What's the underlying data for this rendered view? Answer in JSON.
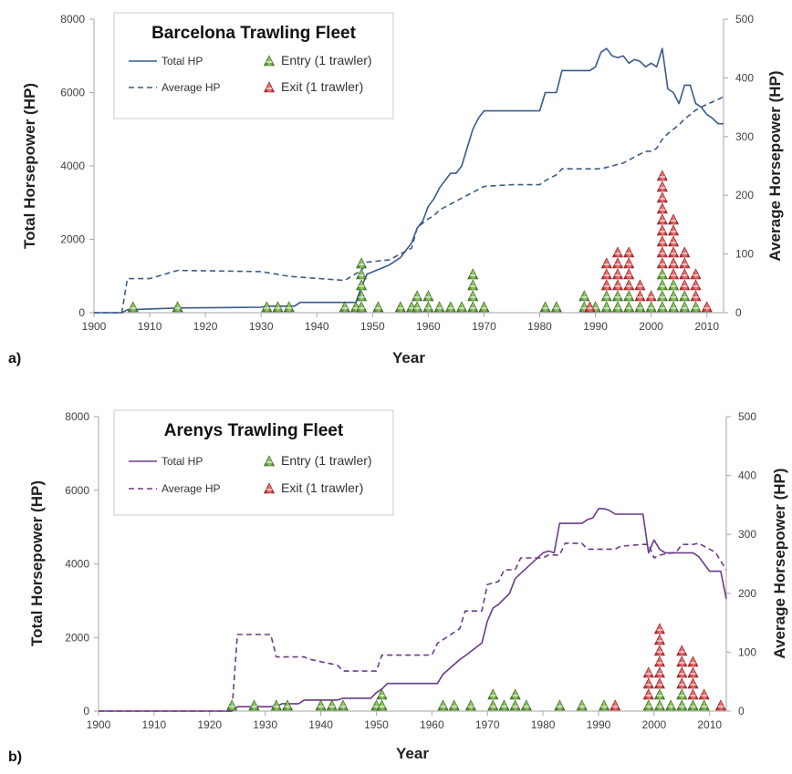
{
  "chart_data": [
    {
      "panel_label": "a)",
      "title": "Barcelona Trawling Fleet",
      "type": "line",
      "xlabel": "Year",
      "ylabel_left": "Total Horsepower (HP)",
      "ylabel_right": "Average Horsepower (HP)",
      "xlim": [
        1900,
        2013
      ],
      "ylim_left": [
        0,
        8000
      ],
      "ylim_right": [
        0,
        500
      ],
      "x_ticks": [
        "1900",
        "1910",
        "1920",
        "1930",
        "1940",
        "1950",
        "1960",
        "1970",
        "1980",
        "1990",
        "2000",
        "2010"
      ],
      "y_ticks_left": [
        "0",
        "2000",
        "4000",
        "6000",
        "8000"
      ],
      "y_ticks_right": [
        "0",
        "100",
        "200",
        "300",
        "400",
        "500"
      ],
      "color": "#3a5a8c",
      "legend": {
        "total": "Total HP",
        "average": "Average HP",
        "entry": "Entry (1 trawler)",
        "exit": "Exit (1 trawler)"
      },
      "series": [
        {
          "name": "Total HP",
          "axis": "left",
          "style": "solid",
          "x": [
            1900,
            1905,
            1906,
            1915,
            1930,
            1931,
            1936,
            1937,
            1947,
            1948,
            1949,
            1953,
            1955,
            1957,
            1958,
            1959,
            1960,
            1961,
            1962,
            1963,
            1964,
            1965,
            1966,
            1967,
            1968,
            1969,
            1970,
            1975,
            1980,
            1981,
            1983,
            1984,
            1988,
            1989,
            1990,
            1991,
            1992,
            1993,
            1994,
            1995,
            1996,
            1997,
            1998,
            1999,
            2000,
            2001,
            2002,
            2003,
            2004,
            2005,
            2006,
            2007,
            2008,
            2009,
            2010,
            2011,
            2012,
            2013
          ],
          "values": [
            0,
            0,
            80,
            130,
            150,
            180,
            180,
            280,
            280,
            700,
            1050,
            1300,
            1500,
            1900,
            2300,
            2500,
            2900,
            3100,
            3400,
            3600,
            3800,
            3800,
            4000,
            4500,
            5000,
            5300,
            5500,
            5500,
            5500,
            6000,
            6000,
            6600,
            6600,
            6600,
            6700,
            7100,
            7200,
            7000,
            6950,
            7000,
            6800,
            6900,
            6850,
            6700,
            6800,
            6700,
            7200,
            6100,
            6000,
            5700,
            6200,
            6200,
            5700,
            5600,
            5400,
            5300,
            5150,
            5150
          ]
        },
        {
          "name": "Average HP",
          "axis": "right",
          "style": "dashed",
          "x": [
            1900,
            1905,
            1906,
            1910,
            1915,
            1930,
            1935,
            1945,
            1948,
            1949,
            1953,
            1955,
            1957,
            1958,
            1960,
            1961,
            1962,
            1964,
            1966,
            1968,
            1970,
            1975,
            1980,
            1981,
            1983,
            1984,
            1988,
            1989,
            1990,
            1991,
            1993,
            1995,
            1997,
            1999,
            2000,
            2001,
            2002,
            2003,
            2005,
            2006,
            2008,
            2010,
            2012,
            2013
          ],
          "values": [
            0,
            0,
            58,
            58,
            72,
            70,
            62,
            55,
            72,
            86,
            90,
            100,
            110,
            145,
            160,
            165,
            175,
            185,
            195,
            205,
            215,
            218,
            218,
            225,
            235,
            245,
            245,
            245,
            245,
            245,
            250,
            255,
            265,
            275,
            275,
            280,
            295,
            305,
            320,
            330,
            345,
            355,
            363,
            368
          ]
        }
      ],
      "entries": [
        [
          1907,
          1
        ],
        [
          1915,
          1
        ],
        [
          1931,
          1
        ],
        [
          1933,
          1
        ],
        [
          1935,
          1
        ],
        [
          1945,
          1
        ],
        [
          1947,
          1
        ],
        [
          1948,
          5
        ],
        [
          1951,
          1
        ],
        [
          1955,
          1
        ],
        [
          1957,
          1
        ],
        [
          1958,
          2
        ],
        [
          1960,
          2
        ],
        [
          1962,
          1
        ],
        [
          1964,
          1
        ],
        [
          1966,
          1
        ],
        [
          1968,
          4
        ],
        [
          1970,
          1
        ],
        [
          1981,
          1
        ],
        [
          1983,
          1
        ],
        [
          1988,
          2
        ],
        [
          1990,
          1
        ],
        [
          1992,
          2
        ],
        [
          1994,
          2
        ],
        [
          1996,
          2
        ],
        [
          1998,
          1
        ],
        [
          2000,
          1
        ],
        [
          2002,
          4
        ],
        [
          2004,
          3
        ],
        [
          2006,
          2
        ],
        [
          2008,
          1
        ]
      ],
      "exits": [
        [
          1989,
          1
        ],
        [
          1992,
          3
        ],
        [
          1994,
          4
        ],
        [
          1996,
          4
        ],
        [
          1998,
          2
        ],
        [
          2000,
          1
        ],
        [
          2002,
          9
        ],
        [
          2004,
          6
        ],
        [
          2006,
          4
        ],
        [
          2008,
          3
        ],
        [
          2010,
          1
        ]
      ]
    },
    {
      "panel_label": "b)",
      "title": "Arenys Trawling Fleet",
      "type": "line",
      "xlabel": "Year",
      "ylabel_left": "Total Horsepower (HP)",
      "ylabel_right": "Average Horsepower (HP)",
      "xlim": [
        1900,
        2013
      ],
      "ylim_left": [
        0,
        8000
      ],
      "ylim_right": [
        0,
        500
      ],
      "x_ticks": [
        "1900",
        "1910",
        "1920",
        "1930",
        "1940",
        "1950",
        "1960",
        "1970",
        "1980",
        "1990",
        "2000",
        "2010"
      ],
      "y_ticks_left": [
        "0",
        "2000",
        "4000",
        "6000",
        "8000"
      ],
      "y_ticks_right": [
        "0",
        "100",
        "200",
        "300",
        "400",
        "500"
      ],
      "color": "#6a3a8a",
      "legend": {
        "total": "Total HP",
        "average": "Average HP",
        "entry": "Entry (1 trawler)",
        "exit": "Exit (1 trawler)"
      },
      "series": [
        {
          "name": "Total HP",
          "axis": "left",
          "style": "solid",
          "x": [
            1900,
            1924,
            1925,
            1932,
            1933,
            1936,
            1937,
            1943,
            1944,
            1949,
            1950,
            1951,
            1952,
            1961,
            1962,
            1965,
            1966,
            1969,
            1970,
            1971,
            1972,
            1974,
            1975,
            1980,
            1981,
            1982,
            1983,
            1987,
            1988,
            1989,
            1990,
            1991,
            1992,
            1993,
            1998,
            1999,
            2000,
            2001,
            2002,
            2007,
            2008,
            2010,
            2012,
            2013
          ],
          "values": [
            0,
            0,
            120,
            120,
            200,
            200,
            300,
            300,
            350,
            350,
            500,
            600,
            750,
            750,
            1000,
            1400,
            1500,
            1850,
            2450,
            2800,
            2900,
            3200,
            3600,
            4300,
            4350,
            4300,
            5100,
            5100,
            5200,
            5250,
            5500,
            5500,
            5450,
            5350,
            5350,
            4300,
            4650,
            4400,
            4300,
            4300,
            4200,
            3800,
            3800,
            3050
          ]
        },
        {
          "name": "Average HP",
          "axis": "right",
          "style": "dashed",
          "x": [
            1900,
            1924,
            1925,
            1931,
            1932,
            1937,
            1938,
            1943,
            1944,
            1950,
            1951,
            1960,
            1961,
            1965,
            1966,
            1969,
            1970,
            1972,
            1973,
            1975,
            1976,
            1980,
            1981,
            1983,
            1984,
            1987,
            1988,
            1993,
            1994,
            1998,
            1999,
            2000,
            2001,
            2004,
            2005,
            2007,
            2008,
            2010,
            2011,
            2013
          ],
          "values": [
            0,
            0,
            130,
            130,
            92,
            92,
            88,
            78,
            68,
            68,
            95,
            95,
            115,
            140,
            170,
            170,
            215,
            220,
            240,
            240,
            260,
            260,
            265,
            265,
            285,
            285,
            275,
            275,
            280,
            283,
            283,
            260,
            265,
            270,
            283,
            283,
            285,
            275,
            270,
            240
          ]
        }
      ],
      "entries": [
        [
          1924,
          1
        ],
        [
          1928,
          1
        ],
        [
          1932,
          1
        ],
        [
          1934,
          1
        ],
        [
          1940,
          1
        ],
        [
          1942,
          1
        ],
        [
          1944,
          1
        ],
        [
          1950,
          1
        ],
        [
          1951,
          2
        ],
        [
          1962,
          1
        ],
        [
          1964,
          1
        ],
        [
          1967,
          1
        ],
        [
          1971,
          2
        ],
        [
          1973,
          1
        ],
        [
          1975,
          2
        ],
        [
          1977,
          1
        ],
        [
          1983,
          1
        ],
        [
          1987,
          1
        ],
        [
          1991,
          1
        ],
        [
          1999,
          1
        ],
        [
          2001,
          2
        ],
        [
          2003,
          1
        ],
        [
          2005,
          2
        ],
        [
          2007,
          1
        ],
        [
          2009,
          1
        ]
      ],
      "exits": [
        [
          1993,
          1
        ],
        [
          1999,
          3
        ],
        [
          2001,
          6
        ],
        [
          2005,
          4
        ],
        [
          2007,
          4
        ],
        [
          2009,
          1
        ],
        [
          2012,
          1
        ]
      ]
    }
  ],
  "colors": {
    "entry": "#4e8a2e",
    "exit": "#c0181d",
    "axis": "#a6a6a6"
  }
}
